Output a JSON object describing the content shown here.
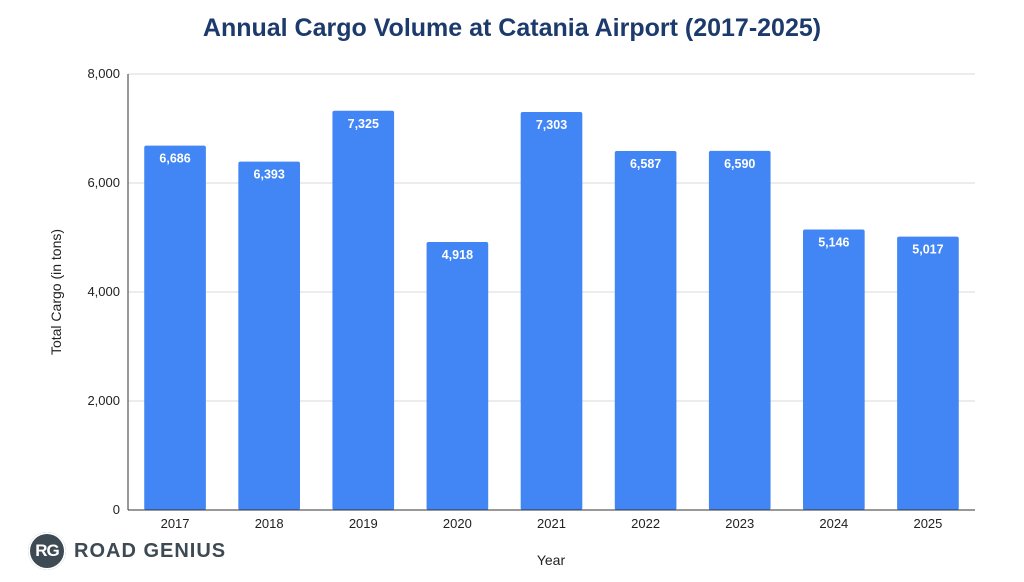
{
  "chart_data": {
    "type": "bar",
    "title": "Annual Cargo Volume at Catania Airport (2017-2025)",
    "xlabel": "Year",
    "ylabel": "Total Cargo (in tons)",
    "categories": [
      "2017",
      "2018",
      "2019",
      "2020",
      "2021",
      "2022",
      "2023",
      "2024",
      "2025"
    ],
    "values": [
      6686,
      6393,
      7325,
      4918,
      7303,
      6587,
      6590,
      5146,
      5017
    ],
    "data_labels": [
      "6,686",
      "6,393",
      "7,325",
      "4,918",
      "7,303",
      "6,587",
      "6,590",
      "5,146",
      "5,017"
    ],
    "ylim": [
      0,
      8000
    ],
    "yticks": [
      0,
      2000,
      4000,
      6000,
      8000
    ],
    "ytick_labels": [
      "0",
      "2,000",
      "4,000",
      "6,000",
      "8,000"
    ],
    "grid": true,
    "legend": "none",
    "colors": {
      "bar": "#4285f4",
      "title": "#1c3a6b",
      "grid": "#d9d9d9",
      "axis": "#333333"
    }
  },
  "brand": {
    "mark": "RG",
    "name": "ROAD GENIUS"
  }
}
